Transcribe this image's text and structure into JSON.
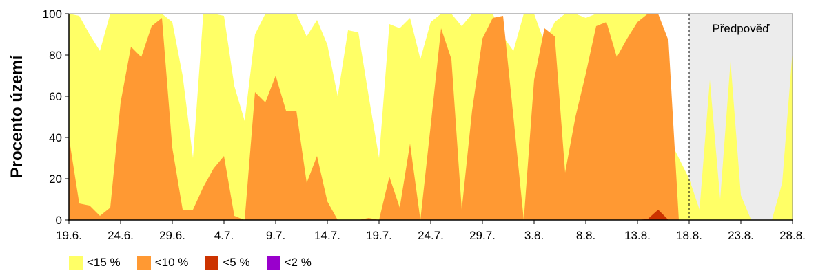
{
  "chart_data": {
    "type": "area",
    "ylabel": "Procento území",
    "ylim": [
      0,
      100
    ],
    "yticks": [
      "0",
      "20",
      "40",
      "60",
      "80",
      "100"
    ],
    "xlim": [
      0,
      70
    ],
    "xticks": [
      {
        "x": 0,
        "label": "19.6."
      },
      {
        "x": 5,
        "label": "24.6."
      },
      {
        "x": 10,
        "label": "29.6."
      },
      {
        "x": 15,
        "label": "4.7."
      },
      {
        "x": 20,
        "label": "9.7."
      },
      {
        "x": 25,
        "label": "14.7."
      },
      {
        "x": 30,
        "label": "19.7."
      },
      {
        "x": 35,
        "label": "24.7."
      },
      {
        "x": 40,
        "label": "29.7."
      },
      {
        "x": 45,
        "label": "3.8."
      },
      {
        "x": 50,
        "label": "8.8."
      },
      {
        "x": 55,
        "label": "13.8."
      },
      {
        "x": 60,
        "label": "18.8."
      },
      {
        "x": 65,
        "label": "23.8."
      },
      {
        "x": 70,
        "label": "28.8."
      }
    ],
    "forecast": {
      "start": 60,
      "end": 70,
      "label": "Předpověď"
    },
    "series": [
      {
        "name": "<15 %",
        "color": "#ffff66",
        "values": [
          [
            0,
            100
          ],
          [
            1,
            99
          ],
          [
            2,
            90
          ],
          [
            3,
            82
          ],
          [
            4,
            100
          ],
          [
            5,
            100
          ],
          [
            6,
            100
          ],
          [
            7,
            100
          ],
          [
            8,
            100
          ],
          [
            9,
            100
          ],
          [
            10,
            96
          ],
          [
            11,
            70
          ],
          [
            12,
            30
          ],
          [
            13,
            100
          ],
          [
            14,
            100
          ],
          [
            15,
            99
          ],
          [
            16,
            65
          ],
          [
            17,
            48
          ],
          [
            18,
            90
          ],
          [
            19,
            100
          ],
          [
            20,
            100
          ],
          [
            21,
            100
          ],
          [
            22,
            100
          ],
          [
            23,
            89
          ],
          [
            24,
            97
          ],
          [
            25,
            85
          ],
          [
            26,
            60
          ],
          [
            27,
            92
          ],
          [
            28,
            91
          ],
          [
            29,
            60
          ],
          [
            30,
            30
          ],
          [
            31,
            95
          ],
          [
            32,
            93
          ],
          [
            33,
            98
          ],
          [
            34,
            78
          ],
          [
            35,
            96
          ],
          [
            36,
            100
          ],
          [
            37,
            100
          ],
          [
            38,
            94
          ],
          [
            39,
            100
          ],
          [
            40,
            100
          ],
          [
            41,
            100
          ],
          [
            42,
            89
          ],
          [
            43,
            82
          ],
          [
            44,
            100
          ],
          [
            45,
            100
          ],
          [
            46,
            86
          ],
          [
            47,
            96
          ],
          [
            48,
            100
          ],
          [
            49,
            100
          ],
          [
            50,
            98
          ],
          [
            51,
            100
          ],
          [
            52,
            100
          ],
          [
            53,
            100
          ],
          [
            54,
            100
          ],
          [
            55,
            100
          ],
          [
            56,
            100
          ],
          [
            57,
            100
          ],
          [
            58,
            40
          ],
          [
            59,
            30
          ],
          [
            60,
            20
          ],
          [
            61,
            5
          ],
          [
            62,
            68
          ],
          [
            63,
            10
          ],
          [
            64,
            77
          ],
          [
            65,
            12
          ],
          [
            66,
            0
          ],
          [
            67,
            0
          ],
          [
            68,
            0
          ],
          [
            69,
            18
          ],
          [
            70,
            82
          ]
        ]
      },
      {
        "name": "<10 %",
        "color": "#ff9933",
        "values": [
          [
            0,
            40
          ],
          [
            1,
            8
          ],
          [
            2,
            7
          ],
          [
            3,
            2
          ],
          [
            4,
            6
          ],
          [
            5,
            57
          ],
          [
            6,
            84
          ],
          [
            7,
            79
          ],
          [
            8,
            94
          ],
          [
            9,
            98
          ],
          [
            10,
            35
          ],
          [
            11,
            5
          ],
          [
            12,
            5
          ],
          [
            13,
            16
          ],
          [
            14,
            25
          ],
          [
            15,
            31
          ],
          [
            16,
            2
          ],
          [
            17,
            0
          ],
          [
            18,
            62
          ],
          [
            19,
            57
          ],
          [
            20,
            70
          ],
          [
            21,
            53
          ],
          [
            22,
            53
          ],
          [
            23,
            18
          ],
          [
            24,
            31
          ],
          [
            25,
            9
          ],
          [
            26,
            0
          ],
          [
            27,
            0
          ],
          [
            28,
            0
          ],
          [
            29,
            1
          ],
          [
            30,
            0
          ],
          [
            31,
            21
          ],
          [
            32,
            6
          ],
          [
            33,
            37
          ],
          [
            34,
            0
          ],
          [
            35,
            46
          ],
          [
            36,
            93
          ],
          [
            37,
            78
          ],
          [
            38,
            5
          ],
          [
            39,
            53
          ],
          [
            40,
            88
          ],
          [
            41,
            98
          ],
          [
            42,
            99
          ],
          [
            43,
            50
          ],
          [
            44,
            0
          ],
          [
            45,
            68
          ],
          [
            46,
            93
          ],
          [
            47,
            89
          ],
          [
            48,
            23
          ],
          [
            49,
            50
          ],
          [
            50,
            71
          ],
          [
            51,
            94
          ],
          [
            52,
            96
          ],
          [
            53,
            79
          ],
          [
            54,
            88
          ],
          [
            55,
            96
          ],
          [
            56,
            100
          ],
          [
            57,
            100
          ],
          [
            58,
            87
          ],
          [
            59,
            0
          ],
          [
            60,
            0
          ],
          [
            61,
            0
          ],
          [
            62,
            0
          ],
          [
            63,
            0
          ],
          [
            64,
            0
          ],
          [
            65,
            0
          ],
          [
            66,
            0
          ],
          [
            67,
            0
          ],
          [
            68,
            0
          ],
          [
            69,
            0
          ],
          [
            70,
            0
          ]
        ]
      },
      {
        "name": "<5 %",
        "color": "#cc3300",
        "values": [
          [
            0,
            0
          ],
          [
            54,
            0
          ],
          [
            55,
            0
          ],
          [
            56,
            0.5
          ],
          [
            57,
            5
          ],
          [
            58,
            0
          ],
          [
            70,
            0
          ]
        ]
      },
      {
        "name": "<2 %",
        "color": "#9900cc",
        "values": [
          [
            0,
            0
          ],
          [
            70,
            0
          ]
        ]
      }
    ],
    "colors": {
      "forecast_background": "#ececec",
      "axis": "#000000"
    }
  }
}
